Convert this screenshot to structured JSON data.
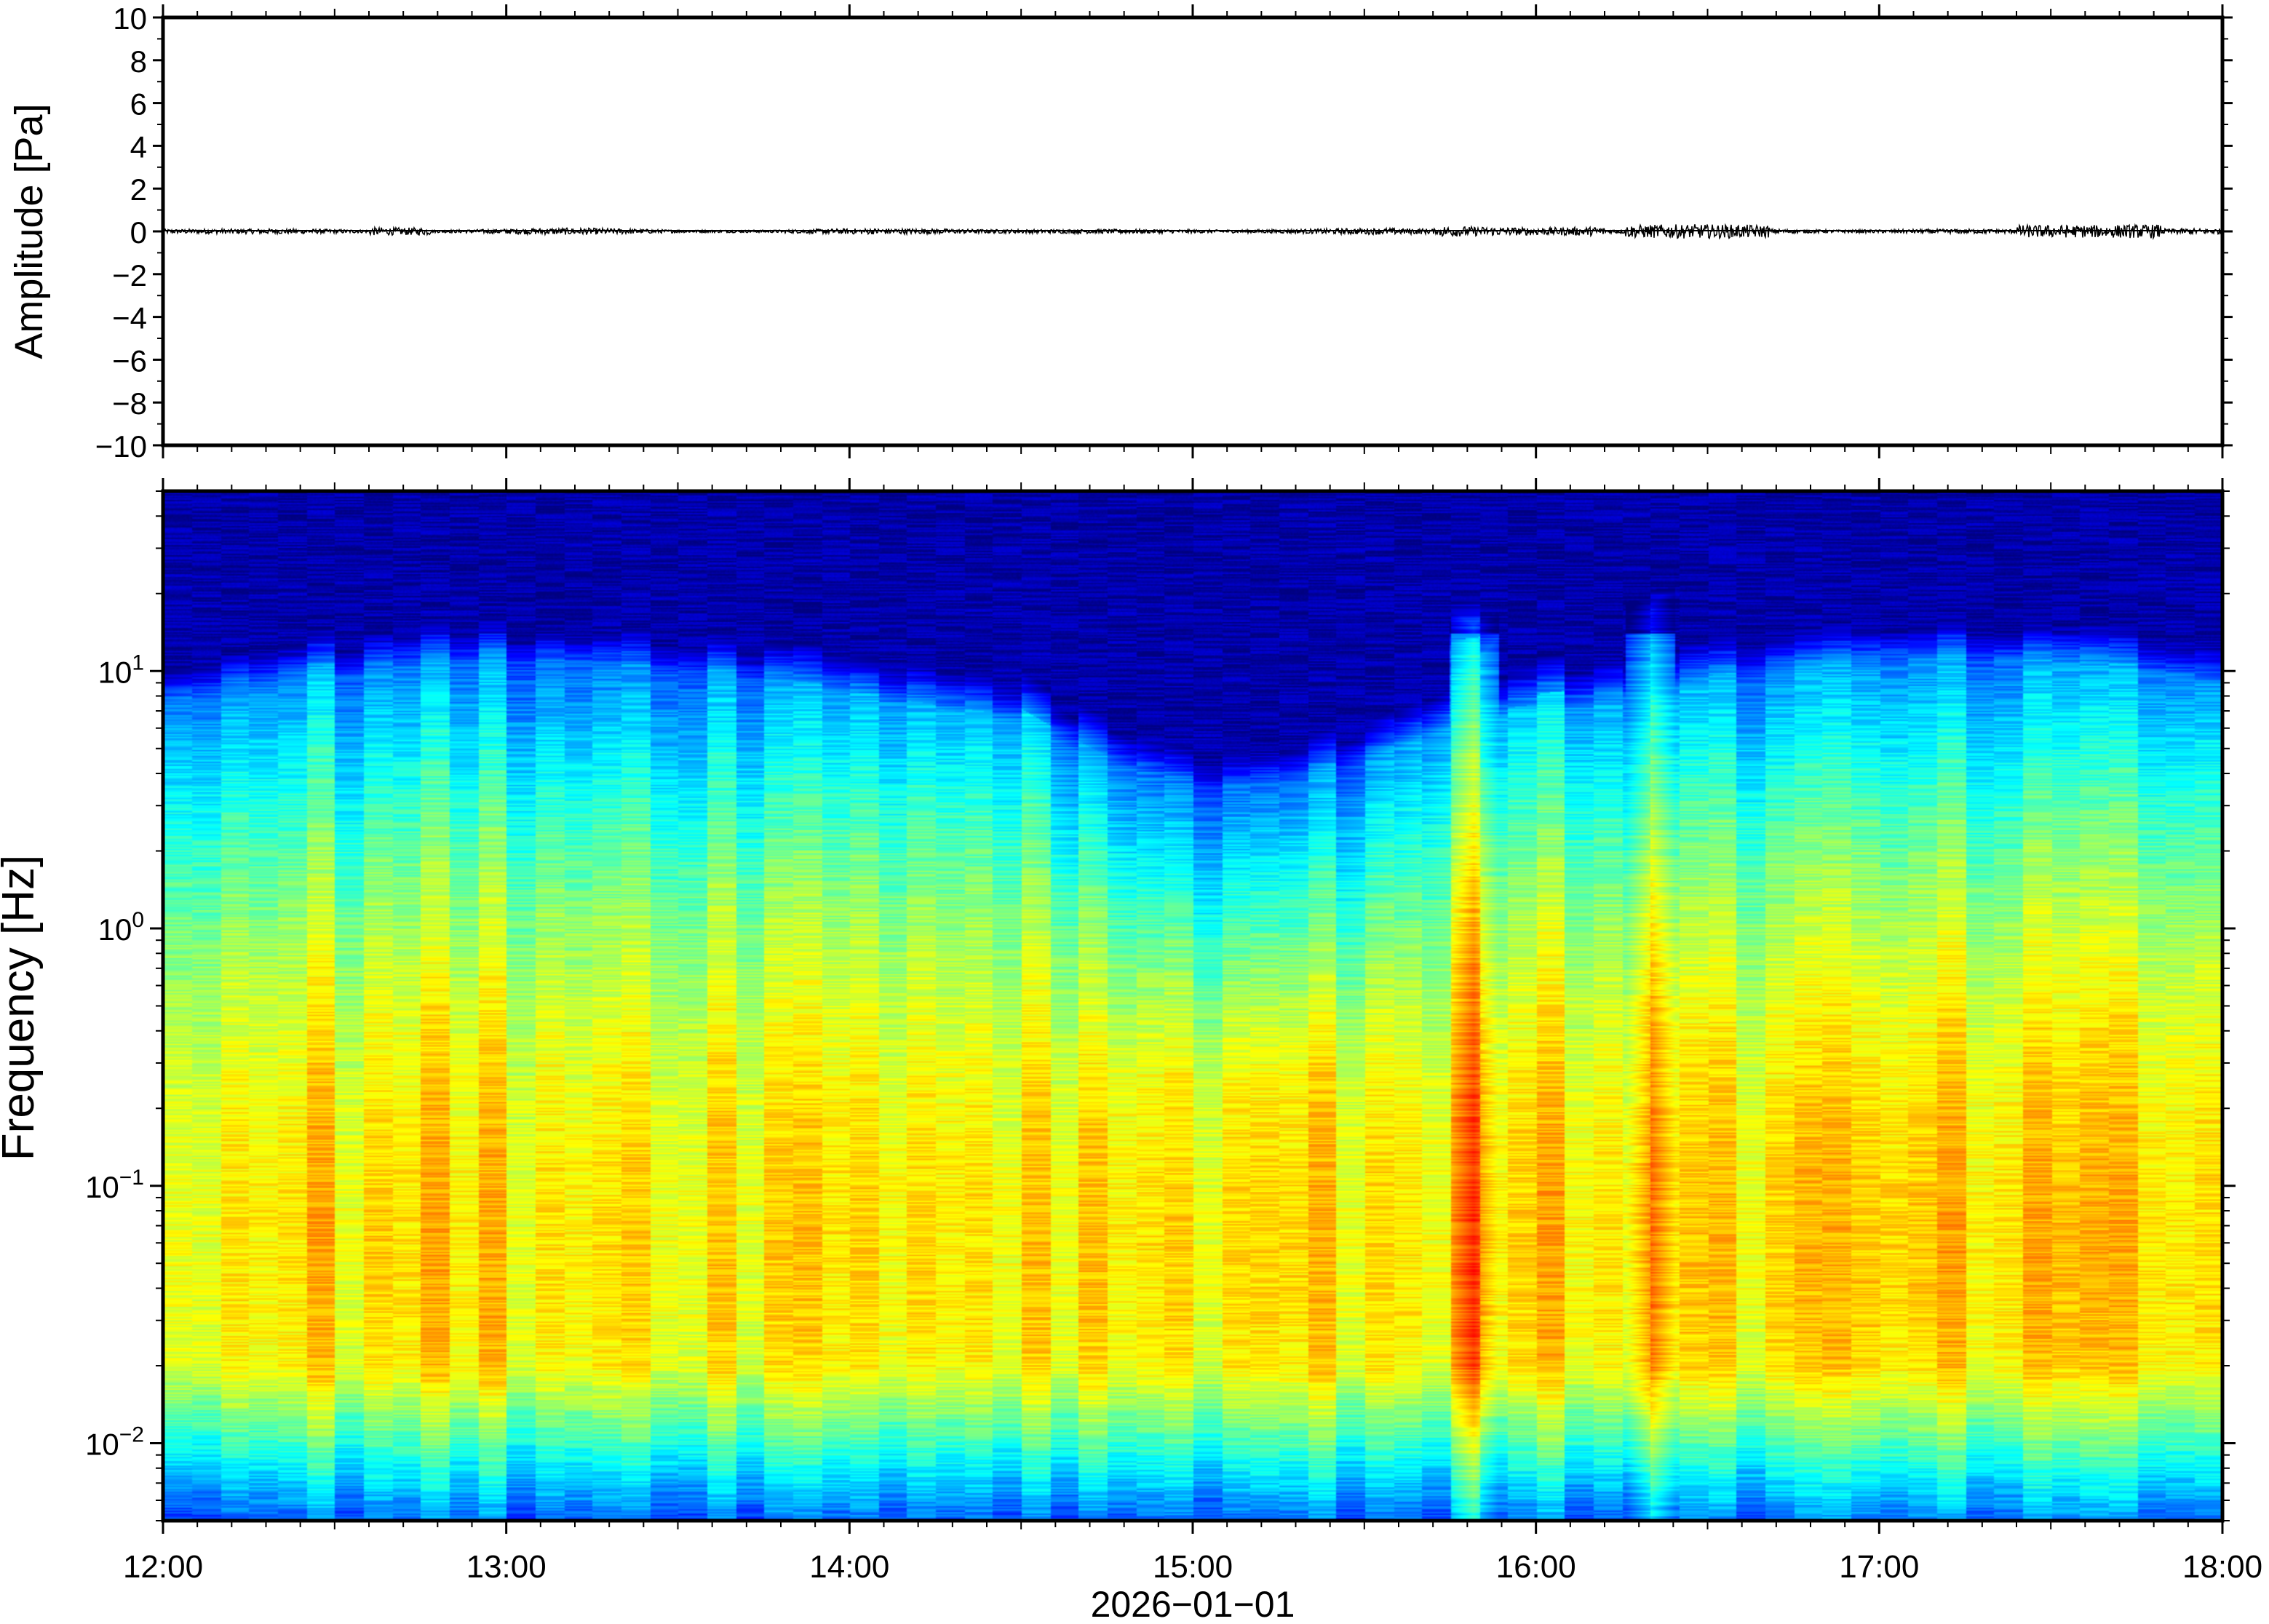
{
  "chart_data": [
    {
      "type": "line",
      "panel": "waveform",
      "ylabel": "Amplitude [Pa]",
      "ylim": [
        -10,
        10
      ],
      "yticks": [
        10,
        8,
        6,
        4,
        2,
        0,
        -2,
        -4,
        -6,
        -8,
        -10
      ],
      "ytick_labels": [
        "10",
        "8",
        "6",
        "4",
        "2",
        "0",
        "−2",
        "−4",
        "−6",
        "−8",
        "−10"
      ],
      "x_range": [
        "12:00",
        "18:00"
      ],
      "series": [
        {
          "baseline": 0,
          "approx_peak_amplitude": 0.4,
          "color": "#000000"
        }
      ]
    },
    {
      "type": "heatmap",
      "panel": "spectrogram",
      "ylabel": "Frequency [Hz]",
      "yscale": "log",
      "ylim": [
        0.005,
        50
      ],
      "yticks": [
        {
          "base": "10",
          "exp": "1",
          "value": 10
        },
        {
          "base": "10",
          "exp": "0",
          "value": 1
        },
        {
          "base": "10",
          "exp": "−1",
          "value": 0.1
        },
        {
          "base": "10",
          "exp": "−2",
          "value": 0.01
        }
      ],
      "xlabel": "2026−01−01",
      "xticks": [
        "12:00",
        "13:00",
        "14:00",
        "15:00",
        "16:00",
        "17:00",
        "18:00"
      ],
      "colormap": "jet",
      "colors": {
        "low": "#0b0b7a",
        "mid_low": "#2a7fe8",
        "mid": "#8fe6c9",
        "mid_high": "#f3e58c",
        "high": "#f0a050"
      },
      "quiet_window": [
        "14:30",
        "15:45"
      ],
      "broadband_bursts": [
        "15:49",
        "16:20"
      ]
    }
  ]
}
